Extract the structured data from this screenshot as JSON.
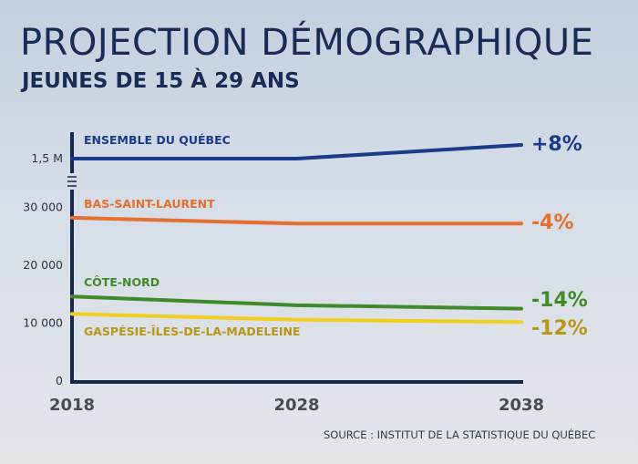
{
  "title": "PROJECTION DÉMOGRAPHIQUE",
  "subtitle": "JEUNES DE 15 À 29 ANS",
  "source": "SOURCE : INSTITUT DE LA STATISTIQUE DU QUÉBEC",
  "chart_data": {
    "type": "line",
    "title": "PROJECTION DÉMOGRAPHIQUE",
    "subtitle": "JEUNES DE 15 À 29 ANS",
    "xlabel": "",
    "ylabel": "",
    "x": [
      2018,
      2028,
      2038
    ],
    "x_tick_labels": [
      "2018",
      "2028",
      "2038"
    ],
    "y_axis_broken": true,
    "y_tick_labels": [
      "0",
      "10 000",
      "20 000",
      "30 000",
      "1,5 M"
    ],
    "ylim": [
      0,
      35000
    ],
    "grid": false,
    "legend": "labels placed directly above each line",
    "series": [
      {
        "name": "ENSEMBLE DU QUÉBEC",
        "scale": "upper broken segment (1,5 M)",
        "values": [
          1500000,
          1500000,
          1620000
        ],
        "change_label": "+8%",
        "color": "#1a3a8c",
        "label_color": "#1a3a8c"
      },
      {
        "name": "BAS-SAINT-LAURENT",
        "values": [
          28200,
          27200,
          27200
        ],
        "change_label": "-4%",
        "color": "#e46f2e",
        "label_color": "#e46f2e"
      },
      {
        "name": "CÔTE-NORD",
        "values": [
          14600,
          13100,
          12500
        ],
        "change_label": "-14%",
        "color": "#3f8a2a",
        "label_color": "#3f8a2a"
      },
      {
        "name": "GASPÉSIE-ÎLES-DE-LA-MADELEINE",
        "values": [
          11600,
          10600,
          10200
        ],
        "change_label": "-12%",
        "color": "#f2cf1f",
        "label_color": "#b8961a"
      }
    ],
    "axis_color": "#152650"
  }
}
